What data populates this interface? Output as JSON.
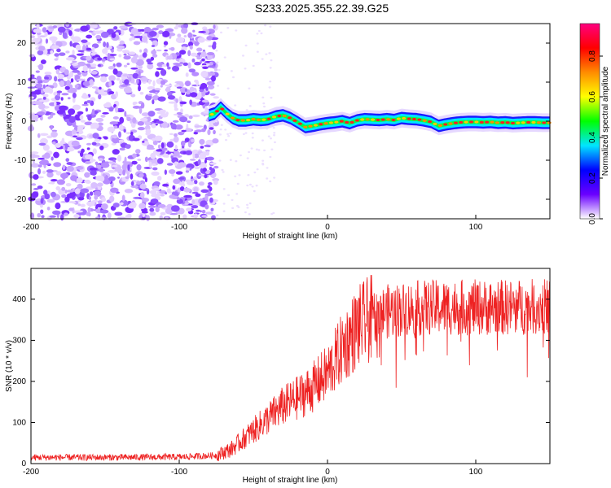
{
  "figure": {
    "title": "S233.2025.355.22.39.G25"
  },
  "chart_data": [
    {
      "type": "heatmap",
      "xlabel": "Height of straight line (km)",
      "ylabel": "Frequency (Hz)",
      "xlim": [
        -200,
        150
      ],
      "ylim": [
        -25,
        25
      ],
      "xticks": [
        -200,
        -100,
        0,
        100
      ],
      "yticks": [
        -20,
        -10,
        0,
        10,
        20
      ],
      "grid": false,
      "noise_region_x": [
        -200,
        -75
      ],
      "signal_trace": {
        "x": [
          -80,
          -76,
          -72,
          -68,
          -64,
          -60,
          -55,
          -50,
          -45,
          -40,
          -35,
          -30,
          -25,
          -20,
          -15,
          -10,
          -5,
          0,
          5,
          10,
          15,
          20,
          25,
          30,
          35,
          40,
          45,
          50,
          55,
          60,
          65,
          70,
          75,
          80,
          85,
          90,
          95,
          100,
          105,
          110,
          115,
          120,
          125,
          130,
          135,
          140,
          145,
          150
        ],
        "y": [
          1.5,
          2.0,
          3.5,
          2.0,
          0.8,
          0.2,
          0.2,
          0.5,
          0.3,
          0.5,
          1.2,
          1.5,
          0.8,
          -0.3,
          -1.5,
          -1.2,
          -0.8,
          -0.5,
          -0.3,
          0.0,
          -0.5,
          0.2,
          0.5,
          0.4,
          0.3,
          0.5,
          0.3,
          0.8,
          0.6,
          0.5,
          0.2,
          -0.2,
          -1.2,
          -0.8,
          -0.5,
          -0.3,
          -0.2,
          -0.2,
          -0.3,
          -0.2,
          -0.4,
          -0.3,
          -0.5,
          -0.4,
          -0.3,
          -0.3,
          -0.4,
          -0.4
        ]
      },
      "colorbar": {
        "label": "Normalized spectral amplitude",
        "ticks": [
          "0.0",
          "0.2",
          "0.4",
          "0.6",
          "0.8"
        ],
        "range": [
          0,
          0.96
        ],
        "colors": [
          "#ffffff",
          "#6a00ff",
          "#0000ff",
          "#00e5ff",
          "#00ff00",
          "#ffff00",
          "#ff8c00",
          "#ff0000",
          "#ff0080"
        ]
      }
    },
    {
      "type": "line",
      "xlabel": "Height of straight line (km)",
      "ylabel": "SNR (10 * v/v)",
      "xlim": [
        -200,
        150
      ],
      "ylim": [
        0,
        475
      ],
      "xticks": [
        -200,
        -100,
        0,
        100
      ],
      "yticks": [
        0,
        100,
        200,
        300,
        400
      ],
      "grid": false,
      "series": [
        {
          "color": "#ee2222",
          "trend_x": [
            -200,
            -150,
            -100,
            -75,
            -65,
            -50,
            -40,
            -30,
            -20,
            -10,
            0,
            10,
            20,
            30,
            40,
            50,
            60,
            80,
            100,
            120,
            150
          ],
          "trend_y": [
            15,
            15,
            16,
            20,
            35,
            80,
            110,
            140,
            160,
            185,
            220,
            280,
            330,
            355,
            370,
            375,
            378,
            380,
            380,
            380,
            382
          ]
        }
      ]
    }
  ]
}
